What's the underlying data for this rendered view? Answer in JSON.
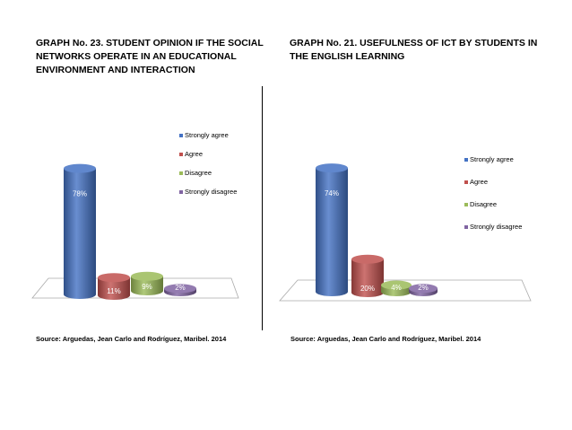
{
  "charts": [
    {
      "title": "GRAPH No. 23. STUDENT OPINION IF THE SOCIAL\nNETWORKS OPERATE IN AN EDUCATIONAL\nENVIRONMENT AND INTERACTION",
      "source": "Source: Arguedas, Jean Carlo and Rodríguez, Maribel. 2014"
    },
    {
      "title": "GRAPH No. 21. USEFULNESS OF ICT BY STUDENTS IN\nTHE ENGLISH LEARNING",
      "source": "Source: Arguedas, Jean Carlo and Rodríguez, Maribel. 2014"
    }
  ],
  "chart_data": [
    {
      "type": "bar",
      "title": "GRAPH No. 23. STUDENT OPINION IF THE SOCIAL NETWORKS OPERATE IN AN EDUCATIONAL ENVIRONMENT AND INTERACTION",
      "categories": [
        "Strongly agree",
        "Agree",
        "Disagree",
        "Strongly disagree"
      ],
      "values": [
        78,
        11,
        9,
        2
      ],
      "data_labels": [
        "78%",
        "11%",
        "9%",
        "2%"
      ],
      "colors": [
        "#4472c4",
        "#c0504d",
        "#9bbb59",
        "#8064a2"
      ],
      "legend": "right",
      "ylim": [
        0,
        80
      ]
    },
    {
      "type": "bar",
      "title": "GRAPH No. 21. USEFULNESS OF ICT BY STUDENTS IN THE ENGLISH LEARNING",
      "categories": [
        "Strongly agree",
        "Agree",
        "Disagree",
        "Strongly disagree"
      ],
      "values": [
        74,
        20,
        4,
        2
      ],
      "data_labels": [
        "74%",
        "20%",
        "4%",
        "2%"
      ],
      "colors": [
        "#4472c4",
        "#c0504d",
        "#9bbb59",
        "#8064a2"
      ],
      "legend": "right",
      "ylim": [
        0,
        80
      ]
    }
  ]
}
